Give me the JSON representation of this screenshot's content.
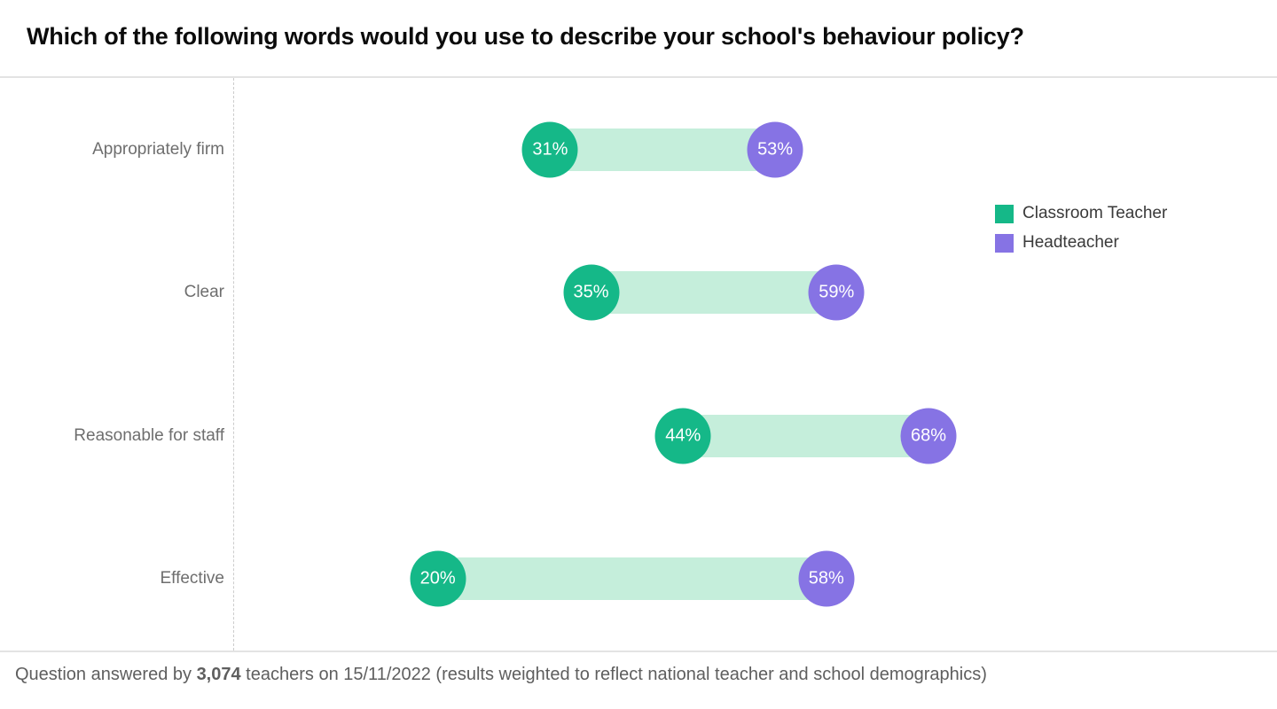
{
  "title": "Which of the following words would you use to describe your school's behaviour policy?",
  "footer": {
    "prefix": "Question answered by ",
    "count": "3,074",
    "suffix": " teachers on 15/11/2022 (results weighted to reflect national teacher and school demographics)"
  },
  "colors": {
    "classroom_teacher": "#15b888",
    "headteacher": "#8673e4",
    "connector": "#c5eedb",
    "axis_line": "#e3e3e3",
    "dashed_baseline": "#cccccc",
    "category_label": "#6e6e6e",
    "legend_text": "#3a3a3a",
    "footer_text": "#5e5e5e",
    "title_text": "#0b0b0b"
  },
  "chart_data": {
    "type": "dumbbell",
    "title": "Which of the following words would you use to describe your school's behaviour policy?",
    "categories": [
      "Appropriately firm",
      "Clear",
      "Reasonable for staff",
      "Effective"
    ],
    "series": [
      {
        "name": "Classroom Teacher",
        "color": "#15b888",
        "values": [
          31,
          35,
          44,
          20
        ],
        "labels": [
          "31%",
          "35%",
          "44%",
          "20%"
        ]
      },
      {
        "name": "Headteacher",
        "color": "#8673e4",
        "values": [
          53,
          59,
          68,
          58
        ],
        "labels": [
          "53%",
          "59%",
          "68%",
          "58%"
        ]
      }
    ],
    "value_format": "percent",
    "xlim": [
      0,
      100
    ],
    "grid": false,
    "legend_position": "right",
    "annotation": "Question answered by 3,074 teachers on 15/11/2022 (results weighted to reflect national teacher and school demographics)"
  }
}
